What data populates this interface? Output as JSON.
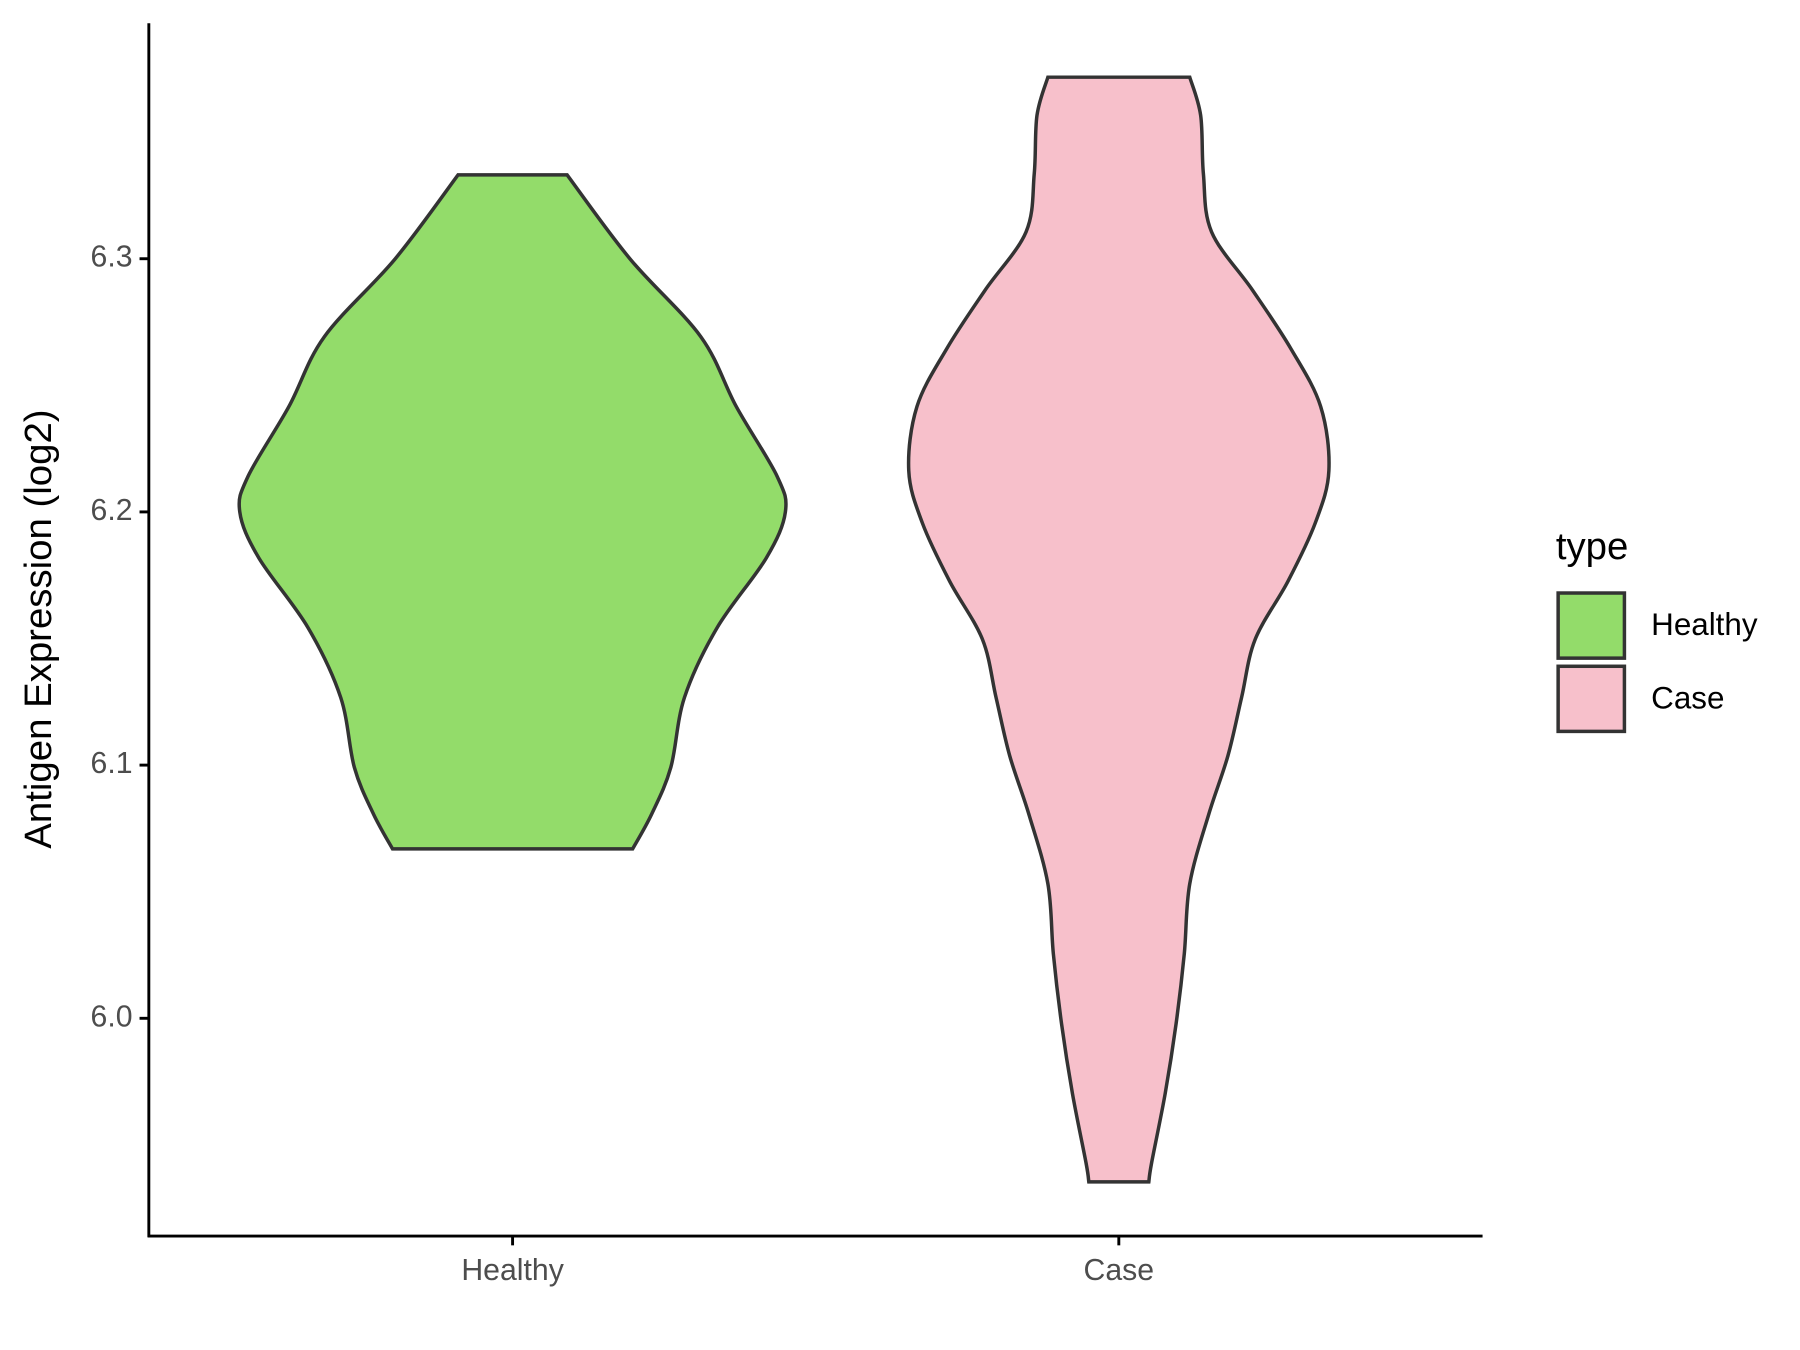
{
  "chart_data": {
    "type": "violin",
    "y_label": "Antigen Expression (log2)",
    "categories": [
      "Healthy",
      "Case"
    ],
    "series": [
      {
        "name": "Healthy",
        "color": "#93dc6a",
        "y": [
          6.3331,
          6.3,
          6.2692,
          6.2416,
          6.214,
          6.2,
          6.1818,
          6.1543,
          6.1267,
          6.0991,
          6.0807,
          6.0669
        ],
        "density": [
          0.2,
          0.43,
          0.69,
          0.82,
          0.97,
          1.0,
          0.93,
          0.75,
          0.63,
          0.58,
          0.51,
          0.44
        ]
      },
      {
        "name": "Case",
        "color": "#f7c0cb",
        "y": [
          6.3717,
          6.3566,
          6.3336,
          6.3106,
          6.2876,
          6.2646,
          6.2416,
          6.2163,
          6.1956,
          6.1726,
          6.1497,
          6.1267,
          6.1037,
          6.0807,
          6.0531,
          6.0255,
          5.9979,
          5.9703,
          5.9428,
          5.9354
        ],
        "density": [
          0.26,
          0.3,
          0.31,
          0.34,
          0.49,
          0.63,
          0.74,
          0.77,
          0.72,
          0.62,
          0.5,
          0.45,
          0.4,
          0.33,
          0.26,
          0.24,
          0.21,
          0.17,
          0.12,
          0.11
        ]
      }
    ],
    "ylim": [
      5.914,
      6.393
    ],
    "yticks": [
      {
        "value": 6,
        "label": "6.0"
      },
      6.1,
      6.2,
      6.3
    ],
    "legend_title": "type",
    "legend": "right",
    "outline_color": "#333333"
  }
}
